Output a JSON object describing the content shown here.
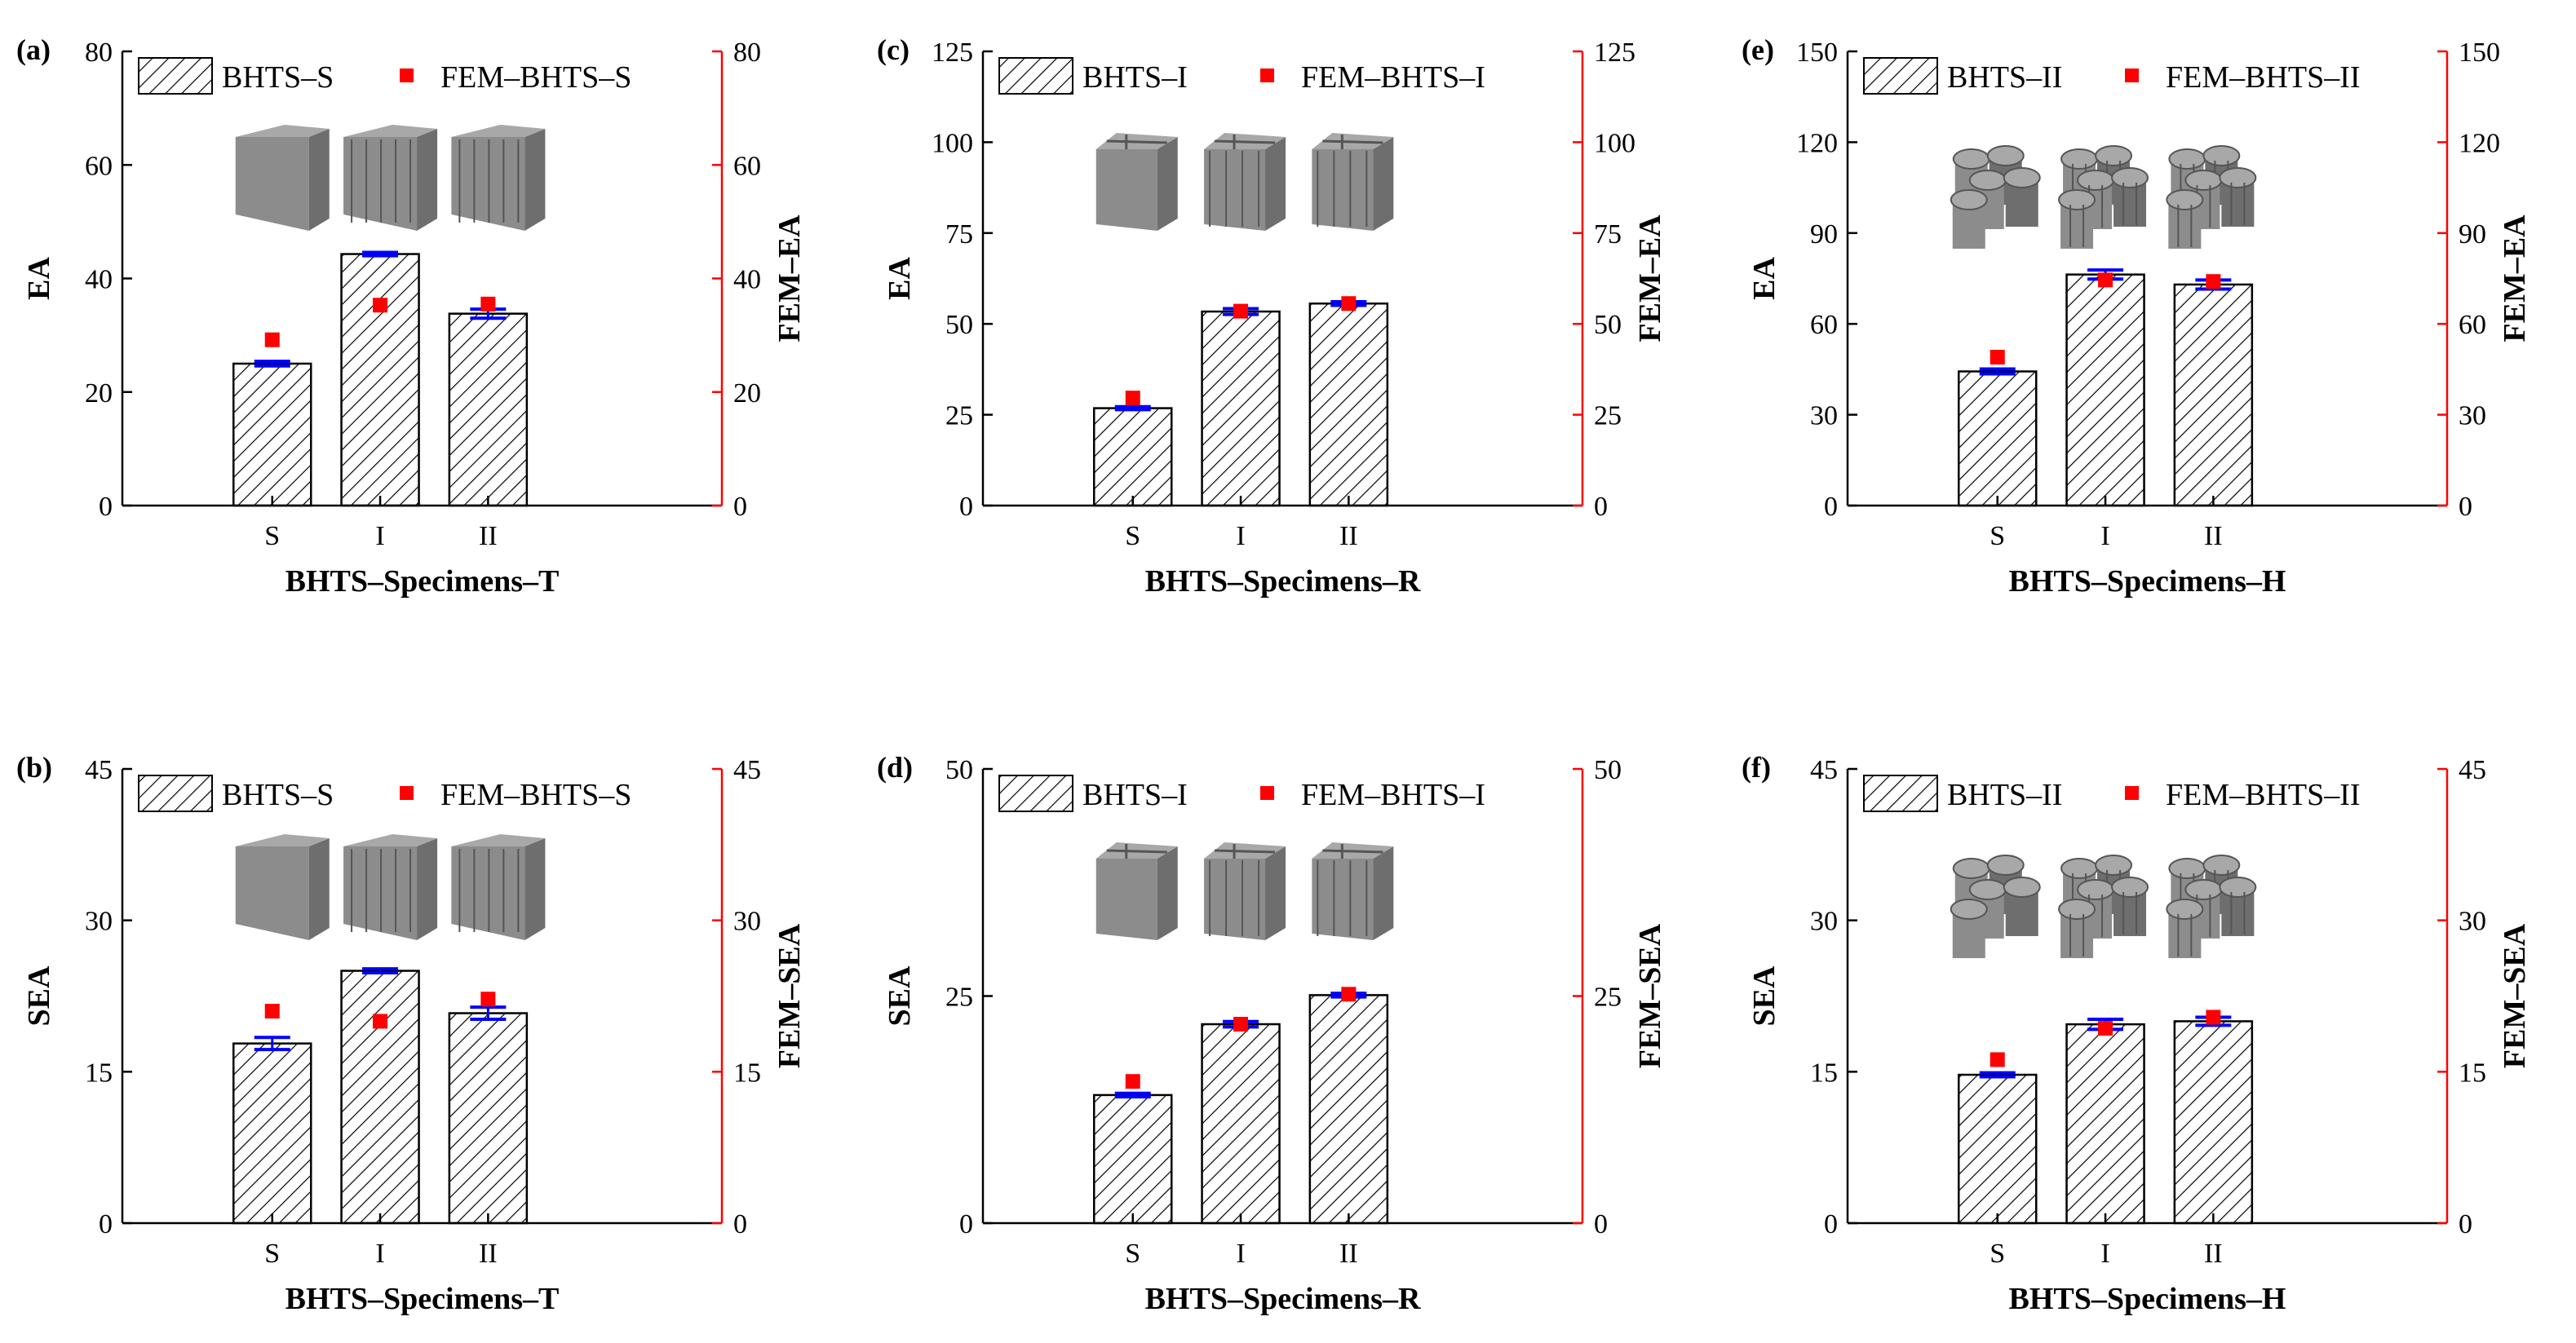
{
  "figure": {
    "colors": {
      "bar_fill": "#ffffff",
      "bar_stroke": "#000000",
      "hatch": "#000000",
      "fem_marker": "#ff0000",
      "error_bar": "#0000ff",
      "right_axis": "#ff0000",
      "left_axis": "#000000",
      "specimen_render": "#8a8a8a"
    }
  },
  "chart_data": [
    {
      "panel": "(a)",
      "type": "bar",
      "categories": [
        "S",
        "I",
        "II"
      ],
      "series": [
        {
          "name": "BHTS–S",
          "values": [
            25.0,
            44.3,
            33.8
          ],
          "errors": [
            0.4,
            0.3,
            0.8
          ]
        },
        {
          "name": "FEM–BHTS–S",
          "kind": "scatter",
          "values": [
            29.2,
            35.3,
            35.5
          ]
        }
      ],
      "xlabel": "BHTS–Specimens–T",
      "ylabel": "EA",
      "y2label": "FEM–EA",
      "ylim": [
        0,
        80
      ],
      "yticks": [
        "0",
        "20",
        "40",
        "60",
        "80"
      ],
      "y2ticks": [
        "0",
        "20",
        "40",
        "60",
        "80"
      ],
      "legend": [
        "BHTS–S",
        "FEM–BHTS–S"
      ]
    },
    {
      "panel": "(b)",
      "type": "bar",
      "categories": [
        "S",
        "I",
        "II"
      ],
      "series": [
        {
          "name": "BHTS–S",
          "values": [
            17.8,
            25.0,
            20.8
          ],
          "errors": [
            0.6,
            0.2,
            0.6
          ]
        },
        {
          "name": "FEM–BHTS–S",
          "kind": "scatter",
          "values": [
            21.0,
            20.0,
            22.2
          ]
        }
      ],
      "xlabel": "BHTS–Specimens–T",
      "ylabel": "SEA",
      "y2label": "FEM–SEA",
      "ylim": [
        0,
        45
      ],
      "yticks": [
        "0",
        "15",
        "30",
        "45"
      ],
      "y2ticks": [
        "0",
        "15",
        "30",
        "45"
      ],
      "legend": [
        "BHTS–S",
        "FEM–BHTS–S"
      ]
    },
    {
      "panel": "(c)",
      "type": "bar",
      "categories": [
        "S",
        "I",
        "II"
      ],
      "series": [
        {
          "name": "BHTS–I",
          "values": [
            26.8,
            53.4,
            55.6
          ],
          "errors": [
            0.4,
            0.8,
            0.5
          ]
        },
        {
          "name": "FEM–BHTS–I",
          "kind": "scatter",
          "values": [
            29.6,
            53.5,
            55.6
          ]
        }
      ],
      "xlabel": "BHTS–Specimens–R",
      "ylabel": "EA",
      "y2label": "FEM–EA",
      "ylim": [
        0,
        125
      ],
      "yticks": [
        "0",
        "25",
        "50",
        "75",
        "100",
        "125"
      ],
      "y2ticks": [
        "0",
        "25",
        "50",
        "75",
        "100",
        "125"
      ],
      "legend": [
        "BHTS–I",
        "FEM–BHTS–I"
      ]
    },
    {
      "panel": "(d)",
      "type": "bar",
      "categories": [
        "S",
        "I",
        "II"
      ],
      "series": [
        {
          "name": "BHTS–I",
          "values": [
            14.1,
            21.9,
            25.1
          ],
          "errors": [
            0.2,
            0.3,
            0.2
          ]
        },
        {
          "name": "FEM–BHTS–I",
          "kind": "scatter",
          "values": [
            15.6,
            21.9,
            25.2
          ]
        }
      ],
      "xlabel": "BHTS–Specimens–R",
      "ylabel": "SEA",
      "y2label": "FEM–SEA",
      "ylim": [
        0,
        50
      ],
      "yticks": [
        "0",
        "25",
        "50"
      ],
      "y2ticks": [
        "0",
        "25",
        "50"
      ],
      "legend": [
        "BHTS–I",
        "FEM–BHTS–I"
      ]
    },
    {
      "panel": "(e)",
      "type": "bar",
      "categories": [
        "S",
        "I",
        "II"
      ],
      "series": [
        {
          "name": "BHTS–II",
          "values": [
            44.3,
            76.3,
            73.0
          ],
          "errors": [
            0.8,
            1.5,
            1.5
          ]
        },
        {
          "name": "FEM–BHTS–II",
          "kind": "scatter",
          "values": [
            49.0,
            74.5,
            74.0
          ]
        }
      ],
      "xlabel": "BHTS–Specimens–H",
      "ylabel": "EA",
      "y2label": "FEM–EA",
      "ylim": [
        0,
        150
      ],
      "yticks": [
        "0",
        "30",
        "60",
        "90",
        "120",
        "150"
      ],
      "y2ticks": [
        "0",
        "30",
        "60",
        "90",
        "120",
        "150"
      ],
      "legend": [
        "BHTS–II",
        "FEM–BHTS–II"
      ]
    },
    {
      "panel": "(f)",
      "type": "bar",
      "categories": [
        "S",
        "I",
        "II"
      ],
      "series": [
        {
          "name": "BHTS–II",
          "values": [
            14.7,
            19.7,
            20.0
          ],
          "errors": [
            0.2,
            0.5,
            0.4
          ]
        },
        {
          "name": "FEM–BHTS–II",
          "kind": "scatter",
          "values": [
            16.2,
            19.3,
            20.4
          ]
        }
      ],
      "xlabel": "BHTS–Specimens–H",
      "ylabel": "SEA",
      "y2label": "FEM–SEA",
      "ylim": [
        0,
        45
      ],
      "yticks": [
        "0",
        "15",
        "30",
        "45"
      ],
      "y2ticks": [
        "0",
        "15",
        "30",
        "45"
      ],
      "legend": [
        "BHTS–II",
        "FEM–BHTS–II"
      ]
    }
  ]
}
